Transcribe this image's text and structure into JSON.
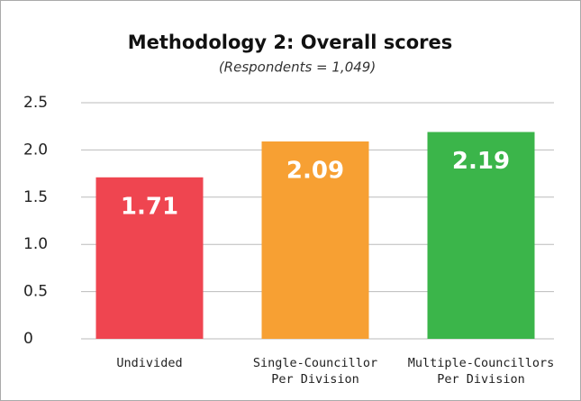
{
  "chart_data": {
    "type": "bar",
    "title": "Methodology 2: Overall scores",
    "subtitle": "(Respondents = 1,049)",
    "categories": [
      "Undivided",
      "Single-Councillor\nPer Division",
      "Multiple-Councillors\nPer Division"
    ],
    "values": [
      1.71,
      2.09,
      2.19
    ],
    "colors": [
      "#ef4550",
      "#f7a033",
      "#3bb54a"
    ],
    "ylim": [
      0,
      2.5
    ],
    "yticks": [
      0,
      0.5,
      {
        "value": 1,
        "label": "1.0"
      },
      1.5,
      {
        "value": 2,
        "label": "2.0"
      },
      2.5
    ],
    "grid": true
  }
}
